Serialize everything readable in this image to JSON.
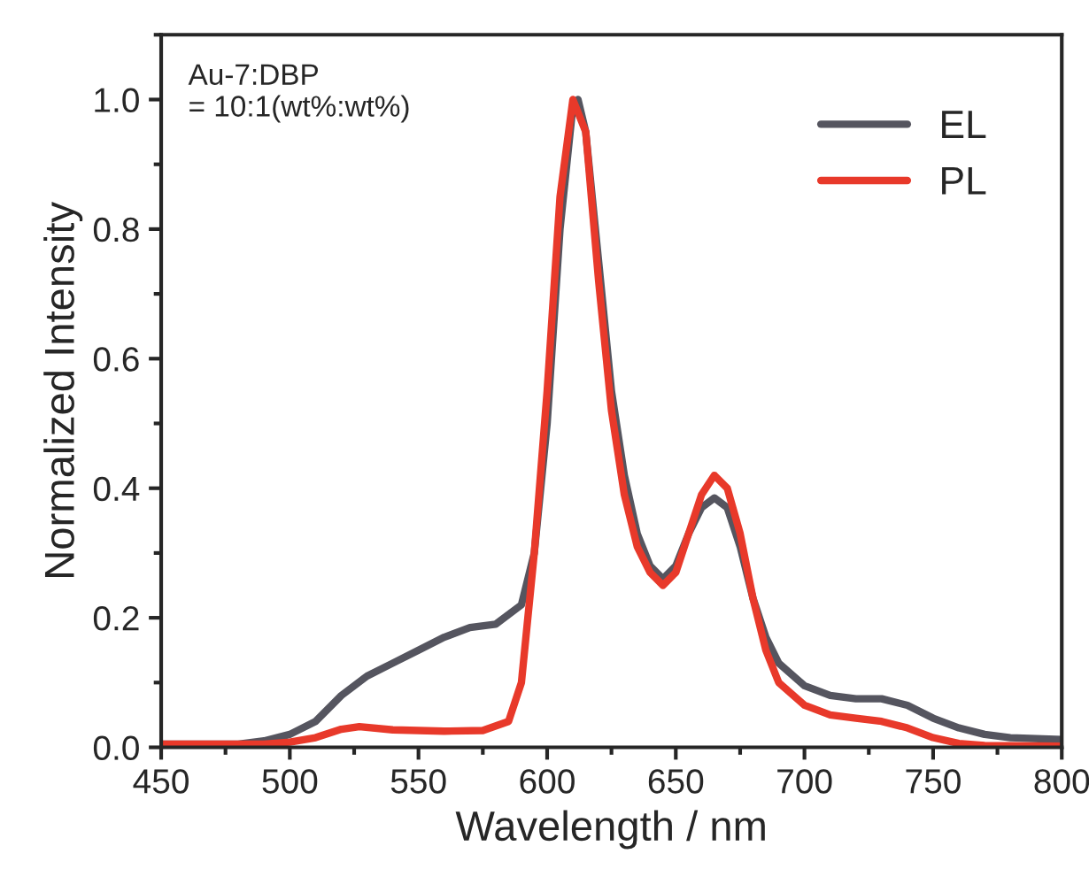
{
  "chart_data": {
    "type": "line",
    "xlabel": "Wavelength / nm",
    "ylabel": "Normalized Intensity",
    "annotations": [
      "Au-7:DBP\n= 10:1(wt%:wt%)"
    ],
    "xlim": [
      450,
      800
    ],
    "xticks": [
      450,
      500,
      550,
      600,
      650,
      700,
      750,
      800
    ],
    "ylim": [
      0,
      1.1
    ],
    "yticks": [
      {
        "value": 0,
        "label": "0.0"
      },
      {
        "value": 0.2,
        "label": "0.2"
      },
      {
        "value": 0.4,
        "label": "0.4"
      },
      {
        "value": 0.6,
        "label": "0.6"
      },
      {
        "value": 0.8,
        "label": "0.8"
      },
      {
        "value": 1,
        "label": "1.0"
      }
    ],
    "legend": "top right",
    "grid": false,
    "series": [
      {
        "name": "EL",
        "color": "#55555f",
        "x": [
          450,
          480,
          490,
          500,
          510,
          520,
          530,
          540,
          550,
          560,
          570,
          580,
          590,
          595,
          600,
          605,
          610,
          612,
          615,
          620,
          625,
          630,
          635,
          640,
          645,
          650,
          655,
          660,
          665,
          670,
          675,
          680,
          685,
          690,
          700,
          710,
          720,
          730,
          740,
          750,
          760,
          770,
          780,
          800
        ],
        "values": [
          0.005,
          0.005,
          0.01,
          0.02,
          0.04,
          0.08,
          0.11,
          0.13,
          0.15,
          0.17,
          0.185,
          0.19,
          0.22,
          0.3,
          0.5,
          0.8,
          0.99,
          1.0,
          0.95,
          0.75,
          0.55,
          0.42,
          0.33,
          0.28,
          0.26,
          0.28,
          0.33,
          0.37,
          0.385,
          0.37,
          0.31,
          0.23,
          0.17,
          0.13,
          0.095,
          0.08,
          0.075,
          0.075,
          0.065,
          0.045,
          0.03,
          0.02,
          0.015,
          0.012
        ]
      },
      {
        "name": "PL",
        "color": "#e8392a",
        "x": [
          450,
          490,
          500,
          510,
          520,
          527,
          540,
          560,
          575,
          585,
          590,
          595,
          600,
          605,
          610,
          615,
          620,
          625,
          630,
          635,
          640,
          645,
          650,
          655,
          660,
          665,
          670,
          675,
          680,
          685,
          690,
          700,
          710,
          720,
          730,
          740,
          750,
          760,
          770,
          800
        ],
        "values": [
          0.005,
          0.005,
          0.008,
          0.015,
          0.028,
          0.032,
          0.027,
          0.025,
          0.026,
          0.04,
          0.1,
          0.3,
          0.55,
          0.85,
          1.0,
          0.95,
          0.72,
          0.52,
          0.39,
          0.31,
          0.27,
          0.25,
          0.27,
          0.33,
          0.39,
          0.42,
          0.4,
          0.33,
          0.23,
          0.15,
          0.1,
          0.065,
          0.05,
          0.045,
          0.04,
          0.03,
          0.015,
          0.006,
          0.003,
          0.002
        ]
      }
    ]
  }
}
